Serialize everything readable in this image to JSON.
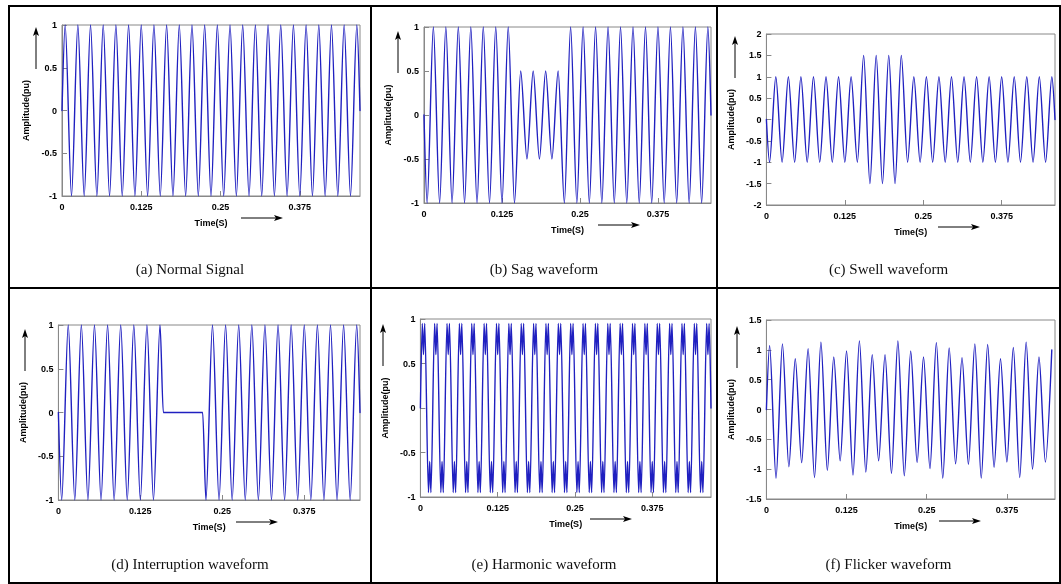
{
  "chart_data": [
    {
      "type": "line",
      "title": "(a) Normal Signal",
      "xlabel": "Time(S)",
      "ylabel": "Amplitude(pu)",
      "color": "#2020c0",
      "xlim": [
        0,
        0.47
      ],
      "xticks": [
        0,
        0.125,
        0.25,
        0.375
      ],
      "ylim": [
        -1,
        1
      ],
      "yticks": [
        -1,
        -0.5,
        0,
        0.5,
        1
      ],
      "x": [
        0,
        0.005,
        0.015,
        0.025,
        0.035,
        0.045,
        0.055,
        0.065,
        0.075,
        0.085,
        0.095,
        0.105,
        0.115,
        0.125,
        0.135,
        0.145,
        0.155,
        0.165,
        0.175,
        0.185,
        0.195,
        0.205,
        0.215,
        0.225,
        0.235,
        0.245,
        0.255,
        0.265,
        0.275,
        0.285,
        0.295,
        0.305,
        0.315,
        0.325,
        0.335,
        0.345,
        0.355,
        0.365,
        0.375,
        0.385,
        0.395,
        0.405,
        0.415,
        0.425,
        0.435,
        0.445,
        0.455,
        0.465,
        0.47
      ],
      "values": [
        0,
        1,
        -1,
        1,
        -1,
        1,
        -1,
        1,
        -1,
        1,
        -1,
        1,
        -1,
        1,
        -1,
        1,
        -1,
        1,
        -1,
        1,
        -1,
        1,
        -1,
        1,
        -1,
        1,
        -1,
        1,
        -1,
        1,
        -1,
        1,
        -1,
        1,
        -1,
        1,
        -1,
        1,
        -1,
        1,
        -1,
        1,
        -1,
        1,
        -1,
        1,
        -1,
        1,
        0
      ]
    },
    {
      "type": "line",
      "title": "(b) Sag waveform",
      "xlabel": "Time(S)",
      "ylabel": "Amplitude(pu)",
      "color": "#2020c0",
      "xlim": [
        0,
        0.46
      ],
      "xticks": [
        0,
        0.125,
        0.25,
        0.375
      ],
      "ylim": [
        -1,
        1
      ],
      "yticks": [
        -1,
        -0.5,
        0,
        0.5,
        1
      ],
      "x": [
        0,
        0.005,
        0.015,
        0.025,
        0.035,
        0.045,
        0.055,
        0.065,
        0.075,
        0.085,
        0.095,
        0.105,
        0.115,
        0.125,
        0.135,
        0.145,
        0.155,
        0.165,
        0.175,
        0.185,
        0.195,
        0.205,
        0.215,
        0.225,
        0.235,
        0.245,
        0.255,
        0.265,
        0.275,
        0.285,
        0.295,
        0.305,
        0.315,
        0.325,
        0.335,
        0.345,
        0.355,
        0.365,
        0.375,
        0.385,
        0.395,
        0.405,
        0.415,
        0.425,
        0.435,
        0.445,
        0.455,
        0.46
      ],
      "values": [
        0,
        -1,
        1,
        -1,
        1,
        -1,
        1,
        -1,
        1,
        -1,
        1,
        -1,
        1,
        -1,
        1,
        -1,
        0.5,
        -0.5,
        0.5,
        -0.5,
        0.5,
        -0.5,
        0.5,
        -1,
        1,
        -1,
        1,
        -1,
        1,
        -1,
        1,
        -1,
        1,
        -1,
        1,
        -1,
        1,
        -1,
        1,
        -1,
        1,
        -1,
        1,
        -1,
        1,
        -1,
        1,
        0
      ]
    },
    {
      "type": "line",
      "title": "(c) Swell waveform",
      "xlabel": "Time(S)",
      "ylabel": "Amplitude(pu)",
      "color": "#2020c0",
      "xlim": [
        0,
        0.46
      ],
      "xticks": [
        0,
        0.125,
        0.25,
        0.375
      ],
      "ylim": [
        -2,
        2
      ],
      "yticks": [
        -2,
        -1.5,
        -1,
        -0.5,
        0,
        0.5,
        1,
        1.5,
        2
      ],
      "x": [
        0,
        0.005,
        0.015,
        0.025,
        0.035,
        0.045,
        0.055,
        0.065,
        0.075,
        0.085,
        0.095,
        0.105,
        0.115,
        0.125,
        0.135,
        0.145,
        0.155,
        0.165,
        0.175,
        0.185,
        0.195,
        0.205,
        0.215,
        0.225,
        0.235,
        0.245,
        0.255,
        0.265,
        0.275,
        0.285,
        0.295,
        0.305,
        0.315,
        0.325,
        0.335,
        0.345,
        0.355,
        0.365,
        0.375,
        0.385,
        0.395,
        0.405,
        0.415,
        0.425,
        0.435,
        0.445,
        0.455,
        0.46
      ],
      "values": [
        0,
        -1,
        1,
        -1,
        1,
        -1,
        1,
        -1,
        1,
        -1,
        1,
        -1,
        1,
        -1,
        1,
        -1,
        1.5,
        -1.5,
        1.5,
        -1.5,
        1.5,
        -1.5,
        1.5,
        -1,
        1,
        -1,
        1,
        -1,
        1,
        -1,
        1,
        -1,
        1,
        -1,
        1,
        -1,
        1,
        -1,
        1,
        -1,
        1,
        -1,
        1,
        -1,
        1,
        -1,
        1,
        0
      ]
    },
    {
      "type": "line",
      "title": "(d) Interruption waveform",
      "xlabel": "Time(S)",
      "ylabel": "Amplitude(pu)",
      "color": "#2020c0",
      "xlim": [
        0,
        0.46
      ],
      "xticks": [
        0,
        0.125,
        0.25,
        0.375
      ],
      "ylim": [
        -1,
        1
      ],
      "yticks": [
        -1,
        -0.5,
        0,
        0.5,
        1
      ],
      "x": [
        0,
        0.005,
        0.015,
        0.025,
        0.035,
        0.045,
        0.055,
        0.065,
        0.075,
        0.085,
        0.095,
        0.105,
        0.115,
        0.125,
        0.135,
        0.145,
        0.155,
        0.16,
        0.22,
        0.225,
        0.235,
        0.245,
        0.255,
        0.265,
        0.275,
        0.285,
        0.295,
        0.305,
        0.315,
        0.325,
        0.335,
        0.345,
        0.355,
        0.365,
        0.375,
        0.385,
        0.395,
        0.405,
        0.415,
        0.425,
        0.435,
        0.445,
        0.455,
        0.46
      ],
      "values": [
        0,
        -1,
        1,
        -1,
        1,
        -1,
        1,
        -1,
        1,
        -1,
        1,
        -1,
        1,
        -1,
        1,
        -1,
        1,
        0,
        0,
        -1,
        1,
        -1,
        1,
        -1,
        1,
        -1,
        1,
        -1,
        1,
        -1,
        1,
        -1,
        1,
        -1,
        1,
        -1,
        1,
        -1,
        1,
        -1,
        1,
        -1,
        1,
        0
      ]
    },
    {
      "type": "line",
      "title": "(e) Harmonic waveform",
      "xlabel": "Time(S)",
      "ylabel": "Amplitude(pu)",
      "color": "#2020c0",
      "xlim": [
        0,
        0.47
      ],
      "xticks": [
        0,
        0.125,
        0.25,
        0.375
      ],
      "ylim": [
        -1,
        1
      ],
      "yticks": [
        -1,
        -0.5,
        0,
        0.5,
        1
      ],
      "x": [
        0,
        0.003,
        0.005,
        0.007,
        0.013,
        0.015,
        0.017,
        0.023,
        0.025,
        0.027,
        0.033,
        0.035,
        0.037,
        0.043,
        0.045,
        0.047,
        0.053,
        0.055,
        0.057,
        0.063,
        0.065,
        0.067,
        0.073,
        0.075,
        0.077,
        0.083,
        0.085,
        0.087,
        0.093,
        0.095,
        0.097,
        0.103,
        0.105,
        0.107,
        0.113,
        0.115,
        0.117,
        0.123,
        0.125,
        0.127,
        0.133,
        0.135,
        0.137,
        0.143,
        0.145,
        0.147,
        0.153,
        0.155,
        0.157,
        0.163,
        0.165,
        0.167,
        0.173,
        0.175,
        0.177,
        0.183,
        0.185,
        0.187,
        0.193,
        0.195,
        0.197,
        0.203,
        0.205,
        0.207,
        0.213,
        0.215,
        0.217,
        0.223,
        0.225,
        0.227,
        0.233,
        0.235,
        0.237,
        0.243,
        0.245,
        0.247,
        0.253,
        0.255,
        0.257,
        0.263,
        0.265,
        0.267,
        0.273,
        0.275,
        0.277,
        0.283,
        0.285,
        0.287,
        0.293,
        0.295,
        0.297,
        0.303,
        0.305,
        0.307,
        0.313,
        0.315,
        0.317,
        0.323,
        0.325,
        0.327,
        0.333,
        0.335,
        0.337,
        0.343,
        0.345,
        0.347,
        0.353,
        0.355,
        0.357,
        0.363,
        0.365,
        0.367,
        0.373,
        0.375,
        0.377,
        0.383,
        0.385,
        0.387,
        0.393,
        0.395,
        0.397,
        0.403,
        0.405,
        0.407,
        0.413,
        0.415,
        0.417,
        0.423,
        0.425,
        0.427,
        0.433,
        0.435,
        0.437,
        0.443,
        0.445,
        0.447,
        0.453,
        0.455,
        0.457,
        0.463,
        0.465,
        0.467,
        0.47
      ],
      "values": [
        0,
        0.95,
        0.6,
        0.95,
        -0.95,
        -0.6,
        -0.95,
        0.95,
        0.6,
        0.95,
        -0.95,
        -0.6,
        -0.95,
        0.95,
        0.6,
        0.95,
        -0.95,
        -0.6,
        -0.95,
        0.95,
        0.6,
        0.95,
        -0.95,
        -0.6,
        -0.95,
        0.95,
        0.6,
        0.95,
        -0.95,
        -0.6,
        -0.95,
        0.95,
        0.6,
        0.95,
        -0.95,
        -0.6,
        -0.95,
        0.95,
        0.6,
        0.95,
        -0.95,
        -0.6,
        -0.95,
        0.95,
        0.6,
        0.95,
        -0.95,
        -0.6,
        -0.95,
        0.95,
        0.6,
        0.95,
        -0.95,
        -0.6,
        -0.95,
        0.95,
        0.6,
        0.95,
        -0.95,
        -0.6,
        -0.95,
        0.95,
        0.6,
        0.95,
        -0.95,
        -0.6,
        -0.95,
        0.95,
        0.6,
        0.95,
        -0.95,
        -0.6,
        -0.95,
        0.95,
        0.6,
        0.95,
        -0.95,
        -0.6,
        -0.95,
        0.95,
        0.6,
        0.95,
        -0.95,
        -0.6,
        -0.95,
        0.95,
        0.6,
        0.95,
        -0.95,
        -0.6,
        -0.95,
        0.95,
        0.6,
        0.95,
        -0.95,
        -0.6,
        -0.95,
        0.95,
        0.6,
        0.95,
        -0.95,
        -0.6,
        -0.95,
        0.95,
        0.6,
        0.95,
        -0.95,
        -0.6,
        -0.95,
        0.95,
        0.6,
        0.95,
        -0.95,
        -0.6,
        -0.95,
        0.95,
        0.6,
        0.95,
        -0.95,
        -0.6,
        -0.95,
        0.95,
        0.6,
        0.95,
        -0.95,
        -0.6,
        -0.95,
        0.95,
        0.6,
        0.95,
        -0.95,
        -0.6,
        -0.95,
        0.95,
        0.6,
        0.95,
        -0.95,
        -0.6,
        -0.95,
        0.95,
        0.6,
        0.95,
        0
      ]
    },
    {
      "type": "line",
      "title": "(f) Flicker waveform",
      "xlabel": "Time(S)",
      "ylabel": "Amplitude(pu)",
      "color": "#2020c0",
      "xlim": [
        0,
        0.45
      ],
      "xticks": [
        0,
        0.125,
        0.25,
        0.375
      ],
      "ylim": [
        -1.5,
        1.5
      ],
      "yticks": [
        -1.5,
        -1,
        -0.5,
        0,
        0.5,
        1,
        1.5
      ],
      "x": [
        0,
        0.005,
        0.015,
        0.025,
        0.035,
        0.045,
        0.055,
        0.065,
        0.075,
        0.085,
        0.095,
        0.105,
        0.115,
        0.125,
        0.135,
        0.145,
        0.155,
        0.165,
        0.175,
        0.185,
        0.195,
        0.205,
        0.215,
        0.225,
        0.235,
        0.245,
        0.255,
        0.265,
        0.275,
        0.285,
        0.295,
        0.305,
        0.315,
        0.325,
        0.335,
        0.345,
        0.355,
        0.365,
        0.375,
        0.385,
        0.395,
        0.405,
        0.415,
        0.425,
        0.435,
        0.445
      ],
      "values": [
        0,
        1.07,
        -1.15,
        1.1,
        -0.96,
        0.85,
        -0.89,
        1.02,
        -1.14,
        1.13,
        -1.02,
        0.88,
        -0.86,
        0.98,
        -1.1,
        1.15,
        -1.05,
        0.92,
        -0.86,
        0.92,
        -1.07,
        1.15,
        -1.11,
        0.98,
        -0.89,
        0.88,
        -0.99,
        1.12,
        -1.15,
        1.03,
        -0.91,
        0.87,
        -0.92,
        1.1,
        -1.15,
        1.09,
        -0.97,
        0.85,
        -0.88,
        1.04,
        -1.14,
        1.13,
        -1,
        0.88,
        -0.88,
        1
      ]
    }
  ]
}
